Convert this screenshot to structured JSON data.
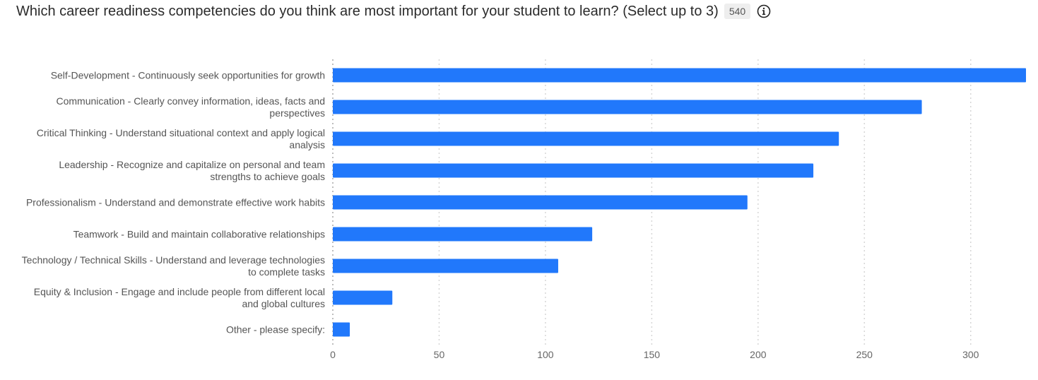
{
  "header": {
    "question": "Which career readiness competencies do you think are most important for your student to learn? (Select up to 3)",
    "response_count": "540",
    "info_icon": "info-circle-icon"
  },
  "chart_data": {
    "type": "bar",
    "orientation": "horizontal",
    "title": "Which career readiness competencies do you think are most important for your student to learn? (Select up to 3)",
    "categories": [
      [
        "Self-Development - Continuously seek opportunities for growth"
      ],
      [
        "Communication - Clearly convey information, ideas, facts and",
        "perspectives"
      ],
      [
        "Critical Thinking - Understand situational context and apply logical",
        "analysis"
      ],
      [
        "Leadership - Recognize and capitalize on personal and team",
        "strengths to achieve goals"
      ],
      [
        "Professionalism - Understand and demonstrate effective work habits"
      ],
      [
        "Teamwork - Build and maintain collaborative relationships"
      ],
      [
        "Technology / Technical Skills - Understand and leverage technologies",
        "to complete tasks"
      ],
      [
        "Equity & Inclusion - Engage and include people from different local",
        "and global cultures"
      ],
      [
        "Other - please specify:"
      ]
    ],
    "values": [
      326,
      277,
      238,
      226,
      195,
      122,
      106,
      28,
      8
    ],
    "xlim": [
      0,
      326
    ],
    "xticks": [
      0,
      50,
      100,
      150,
      200,
      250,
      300
    ],
    "grid": true,
    "bar_color": "#2178fb",
    "legend": "none"
  }
}
